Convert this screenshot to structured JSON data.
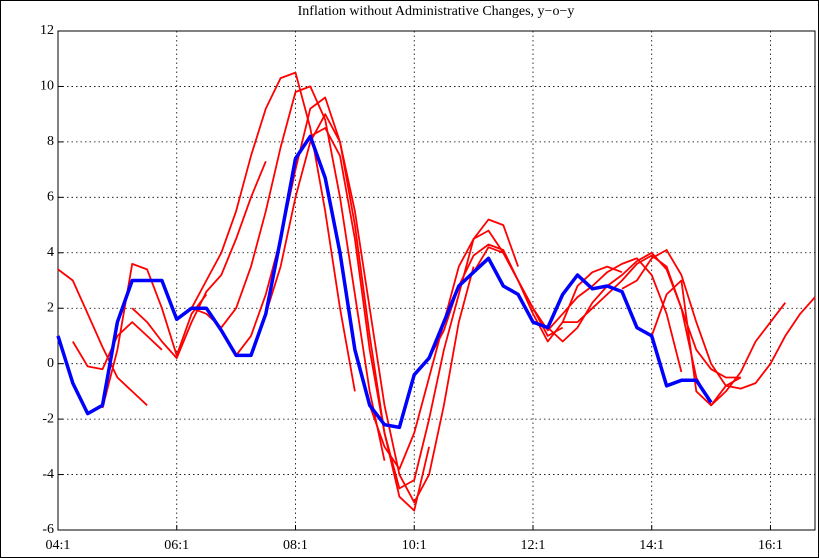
{
  "chart_data": {
    "type": "line",
    "title": "Inflation without Administrative Changes, y−o−y",
    "xlim": [
      0,
      51
    ],
    "ylim": [
      -6,
      12
    ],
    "xticks": [
      {
        "value": 0,
        "label": "04:1"
      },
      {
        "value": 8,
        "label": "06:1"
      },
      {
        "value": 16,
        "label": "08:1"
      },
      {
        "value": 24,
        "label": "10:1"
      },
      {
        "value": 32,
        "label": "12:1"
      },
      {
        "value": 40,
        "label": "14:1"
      },
      {
        "value": 48,
        "label": "16:1"
      }
    ],
    "yticks": [
      -6,
      -4,
      -2,
      0,
      2,
      4,
      6,
      8,
      10,
      12
    ],
    "grid": true,
    "series": [
      {
        "color": "#ff0000",
        "x": [
          0,
          1,
          2,
          3,
          4,
          5,
          6
        ],
        "values": [
          3.4,
          3.0,
          1.8,
          0.6,
          -0.5,
          -1.0,
          -1.5
        ]
      },
      {
        "color": "#ff0000",
        "x": [
          1,
          2,
          3,
          4,
          5,
          6,
          7
        ],
        "values": [
          0.8,
          -0.1,
          -0.2,
          1.0,
          1.5,
          1.0,
          0.5
        ]
      },
      {
        "color": "#ff0000",
        "x": [
          3,
          4,
          5,
          6,
          7,
          8,
          9,
          10
        ],
        "values": [
          -1.6,
          0.5,
          3.6,
          3.4,
          2.0,
          0.3,
          1.8,
          2.5
        ]
      },
      {
        "color": "#ff0000",
        "x": [
          5,
          6,
          7,
          8,
          9,
          10,
          11,
          12,
          13,
          14
        ],
        "values": [
          2.0,
          1.5,
          0.8,
          0.2,
          1.5,
          2.6,
          3.2,
          4.5,
          6.0,
          7.3
        ]
      },
      {
        "color": "#ff0000",
        "x": [
          8,
          9,
          10,
          11,
          12,
          13,
          14,
          15,
          16,
          17,
          18,
          19,
          20
        ],
        "values": [
          1.6,
          2.0,
          3.0,
          4.0,
          5.5,
          7.5,
          9.2,
          10.3,
          10.5,
          8.5,
          5.5,
          2.0,
          -1.0
        ]
      },
      {
        "color": "#ff0000",
        "x": [
          9,
          10,
          11,
          12,
          13,
          14,
          15,
          16,
          17,
          18,
          19,
          20,
          21,
          22
        ],
        "values": [
          2.0,
          1.8,
          1.3,
          2.0,
          3.5,
          5.5,
          7.8,
          9.8,
          10.0,
          8.8,
          6.0,
          2.5,
          -1.0,
          -3.5
        ]
      },
      {
        "color": "#ff0000",
        "x": [
          12,
          13,
          14,
          15,
          16,
          17,
          18,
          19,
          20,
          21,
          22,
          23,
          24,
          25
        ],
        "values": [
          0.3,
          1.0,
          2.5,
          4.5,
          7.0,
          9.2,
          9.6,
          8.0,
          5.0,
          1.0,
          -2.5,
          -4.8,
          -5.3,
          -3.0
        ]
      },
      {
        "color": "#ff0000",
        "x": [
          14,
          15,
          16,
          17,
          18,
          19,
          20,
          21,
          22,
          23,
          24,
          25,
          26,
          27,
          28
        ],
        "values": [
          1.8,
          3.5,
          6.0,
          8.0,
          9.0,
          8.0,
          5.5,
          2.0,
          -1.5,
          -4.0,
          -5.0,
          -4.0,
          -1.5,
          1.5,
          3.5
        ]
      },
      {
        "color": "#ff0000",
        "x": [
          17,
          18,
          19,
          20,
          21,
          22,
          23,
          24,
          25,
          26,
          27,
          28,
          29,
          30,
          31
        ],
        "values": [
          8.2,
          8.5,
          7.5,
          4.5,
          0.5,
          -2.5,
          -4.5,
          -4.2,
          -2.0,
          0.5,
          2.5,
          4.5,
          5.2,
          5.0,
          3.5
        ]
      },
      {
        "color": "#ff0000",
        "x": [
          20,
          21,
          22,
          23,
          24,
          25,
          26,
          27,
          28,
          29,
          30,
          31,
          32,
          33,
          34
        ],
        "values": [
          0.5,
          -1.5,
          -3.0,
          -3.8,
          -2.5,
          -0.5,
          1.5,
          3.5,
          4.5,
          4.8,
          4.0,
          3.0,
          2.0,
          1.0,
          1.3
        ]
      },
      {
        "color": "#ff0000",
        "x": [
          24,
          25,
          26,
          27,
          28,
          29,
          30,
          31,
          32,
          33,
          34,
          35,
          36,
          37,
          38
        ],
        "values": [
          -0.4,
          0.2,
          1.2,
          2.8,
          3.9,
          4.3,
          4.1,
          3.0,
          1.8,
          0.8,
          1.5,
          2.8,
          3.3,
          3.5,
          3.3
        ]
      },
      {
        "color": "#ff0000",
        "x": [
          28,
          29,
          30,
          31,
          32,
          33,
          34,
          35,
          36,
          37,
          38,
          39,
          40,
          41,
          42
        ],
        "values": [
          3.3,
          4.2,
          4.0,
          3.0,
          2.0,
          1.2,
          1.8,
          2.4,
          2.8,
          3.3,
          3.6,
          3.8,
          3.2,
          1.8,
          -0.3
        ]
      },
      {
        "color": "#ff0000",
        "x": [
          32,
          33,
          34,
          35,
          36,
          37,
          38,
          39,
          40,
          41,
          42,
          43,
          44,
          45,
          46
        ],
        "values": [
          1.5,
          1.3,
          0.8,
          1.3,
          2.2,
          2.8,
          3.2,
          3.7,
          4.0,
          3.4,
          2.0,
          0.5,
          -0.2,
          -0.5,
          -0.5
        ]
      },
      {
        "color": "#ff0000",
        "x": [
          34,
          35,
          36,
          37,
          38,
          39,
          40,
          41,
          42,
          43,
          44,
          45,
          46,
          47,
          48,
          49
        ],
        "values": [
          1.5,
          1.5,
          2.0,
          2.5,
          3.0,
          3.6,
          3.9,
          3.5,
          2.0,
          -0.5,
          -1.5,
          -1.0,
          -0.3,
          0.8,
          1.5,
          2.2
        ]
      },
      {
        "color": "#ff0000",
        "x": [
          38,
          39,
          40,
          41,
          42,
          43,
          44,
          45,
          46,
          47,
          48,
          49,
          50,
          51
        ],
        "values": [
          2.7,
          3.0,
          3.8,
          4.1,
          3.2,
          1.5,
          0.0,
          -0.8,
          -0.9,
          -0.7,
          0.0,
          1.0,
          1.8,
          2.4
        ]
      },
      {
        "color": "#ff0000",
        "x": [
          40,
          41,
          42,
          43,
          44,
          45,
          46
        ],
        "values": [
          1.0,
          2.5,
          3.0,
          -1.0,
          -1.5,
          -0.8,
          -0.5
        ]
      },
      {
        "color": "#0000ff",
        "x": [
          0,
          1,
          2,
          3,
          4,
          5,
          6,
          7,
          8,
          9,
          10,
          11,
          12,
          13,
          14,
          15,
          16,
          17,
          18,
          19,
          20,
          21,
          22,
          23,
          24,
          25,
          26,
          27,
          28,
          29,
          30,
          31,
          32,
          33,
          34,
          35,
          36,
          37,
          38,
          39,
          40,
          41,
          42,
          43,
          44
        ],
        "values": [
          1.0,
          -0.7,
          -1.8,
          -1.5,
          1.5,
          3.0,
          3.0,
          3.0,
          1.6,
          2.0,
          2.0,
          1.2,
          0.3,
          0.3,
          1.8,
          4.5,
          7.4,
          8.2,
          6.7,
          4.0,
          0.5,
          -1.5,
          -2.2,
          -2.3,
          -0.4,
          0.2,
          1.5,
          2.8,
          3.3,
          3.8,
          2.8,
          2.5,
          1.5,
          1.3,
          2.5,
          3.2,
          2.7,
          2.8,
          2.6,
          1.3,
          1.0,
          -0.8,
          -0.6,
          -0.6,
          -1.4
        ]
      }
    ]
  }
}
